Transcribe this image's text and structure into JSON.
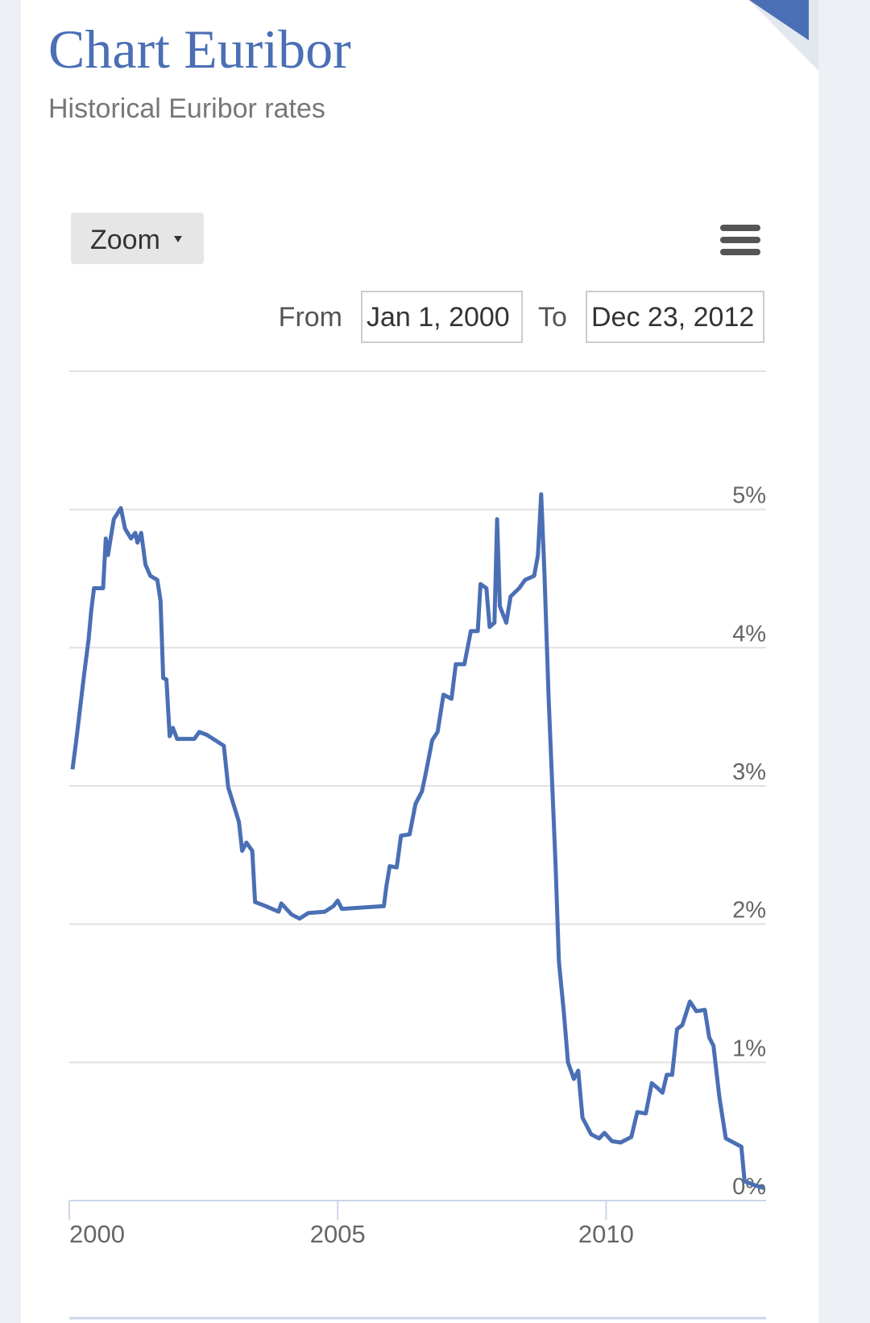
{
  "header": {
    "title": "Chart Euribor",
    "subtitle": "Historical Euribor rates"
  },
  "controls": {
    "zoom": "Zoom",
    "from_label": "From",
    "from": "Jan 1, 2000",
    "to_label": "To",
    "to": "Dec 23, 2012"
  },
  "chart_data": {
    "type": "line",
    "x": [
      2000.06,
      2000.13,
      2000.28,
      2000.36,
      2000.41,
      2000.46,
      2000.63,
      2000.68,
      2000.72,
      2000.83,
      2000.96,
      2001.04,
      2001.15,
      2001.23,
      2001.27,
      2001.34,
      2001.42,
      2001.51,
      2001.64,
      2001.7,
      2001.75,
      2001.81,
      2001.87,
      2001.93,
      2002.01,
      2002.33,
      2002.42,
      2002.56,
      2002.72,
      2002.88,
      2002.96,
      2003.08,
      2003.16,
      2003.22,
      2003.3,
      2003.41,
      2003.46,
      2003.66,
      2003.9,
      2003.95,
      2004.14,
      2004.29,
      2004.45,
      2004.76,
      2004.92,
      2005.0,
      2005.08,
      2005.86,
      2005.91,
      2005.97,
      2006.1,
      2006.18,
      2006.34,
      2006.45,
      2006.57,
      2006.65,
      2006.76,
      2006.86,
      2006.97,
      2007.12,
      2007.2,
      2007.36,
      2007.48,
      2007.61,
      2007.66,
      2007.77,
      2007.83,
      2007.92,
      2007.97,
      2008.02,
      2008.14,
      2008.22,
      2008.38,
      2008.49,
      2008.66,
      2008.73,
      2008.79,
      2008.85,
      2008.93,
      2009.06,
      2009.12,
      2009.21,
      2009.29,
      2009.4,
      2009.48,
      2009.56,
      2009.72,
      2009.87,
      2009.97,
      2010.11,
      2010.27,
      2010.47,
      2010.58,
      2010.74,
      2010.85,
      2010.97,
      2011.05,
      2011.13,
      2011.23,
      2011.32,
      2011.42,
      2011.56,
      2011.68,
      2011.84,
      2011.92,
      2012.0,
      2012.11,
      2012.23,
      2012.52,
      2012.58,
      2012.78,
      2012.94
    ],
    "series": [
      {
        "color": "#4a6fb5",
        "values": [
          3.12,
          3.33,
          3.82,
          4.06,
          4.27,
          4.43,
          4.43,
          4.79,
          4.67,
          4.93,
          5.01,
          4.86,
          4.79,
          4.83,
          4.76,
          4.83,
          4.6,
          4.52,
          4.49,
          4.34,
          3.78,
          3.77,
          3.36,
          3.42,
          3.34,
          3.34,
          3.39,
          3.37,
          3.33,
          3.29,
          2.99,
          2.84,
          2.74,
          2.53,
          2.59,
          2.53,
          2.16,
          2.13,
          2.09,
          2.15,
          2.07,
          2.04,
          2.08,
          2.09,
          2.13,
          2.17,
          2.11,
          2.13,
          2.28,
          2.42,
          2.41,
          2.64,
          2.65,
          2.87,
          2.96,
          3.11,
          3.33,
          3.39,
          3.66,
          3.63,
          3.88,
          3.88,
          4.12,
          4.12,
          4.46,
          4.43,
          4.15,
          4.18,
          4.93,
          4.3,
          4.18,
          4.37,
          4.43,
          4.49,
          4.52,
          4.67,
          5.11,
          4.55,
          3.63,
          2.41,
          1.73,
          1.37,
          1.0,
          0.88,
          0.94,
          0.6,
          0.48,
          0.45,
          0.49,
          0.43,
          0.42,
          0.46,
          0.64,
          0.63,
          0.85,
          0.81,
          0.78,
          0.91,
          0.91,
          1.24,
          1.27,
          1.44,
          1.37,
          1.38,
          1.18,
          1.12,
          0.75,
          0.45,
          0.39,
          0.14,
          0.11,
          0.09
        ]
      }
    ],
    "xlim": [
      2000,
      2012.98
    ],
    "xticks": [
      2000,
      2005,
      2010
    ],
    "ylim": [
      0,
      6
    ],
    "yticks": [
      {
        "value": 0,
        "label": "0%"
      },
      {
        "value": 1,
        "label": "1%"
      },
      {
        "value": 2,
        "label": "2%"
      },
      {
        "value": 3,
        "label": "3%"
      },
      {
        "value": 4,
        "label": "4%"
      },
      {
        "value": 5,
        "label": "5%"
      }
    ],
    "grid": true
  }
}
